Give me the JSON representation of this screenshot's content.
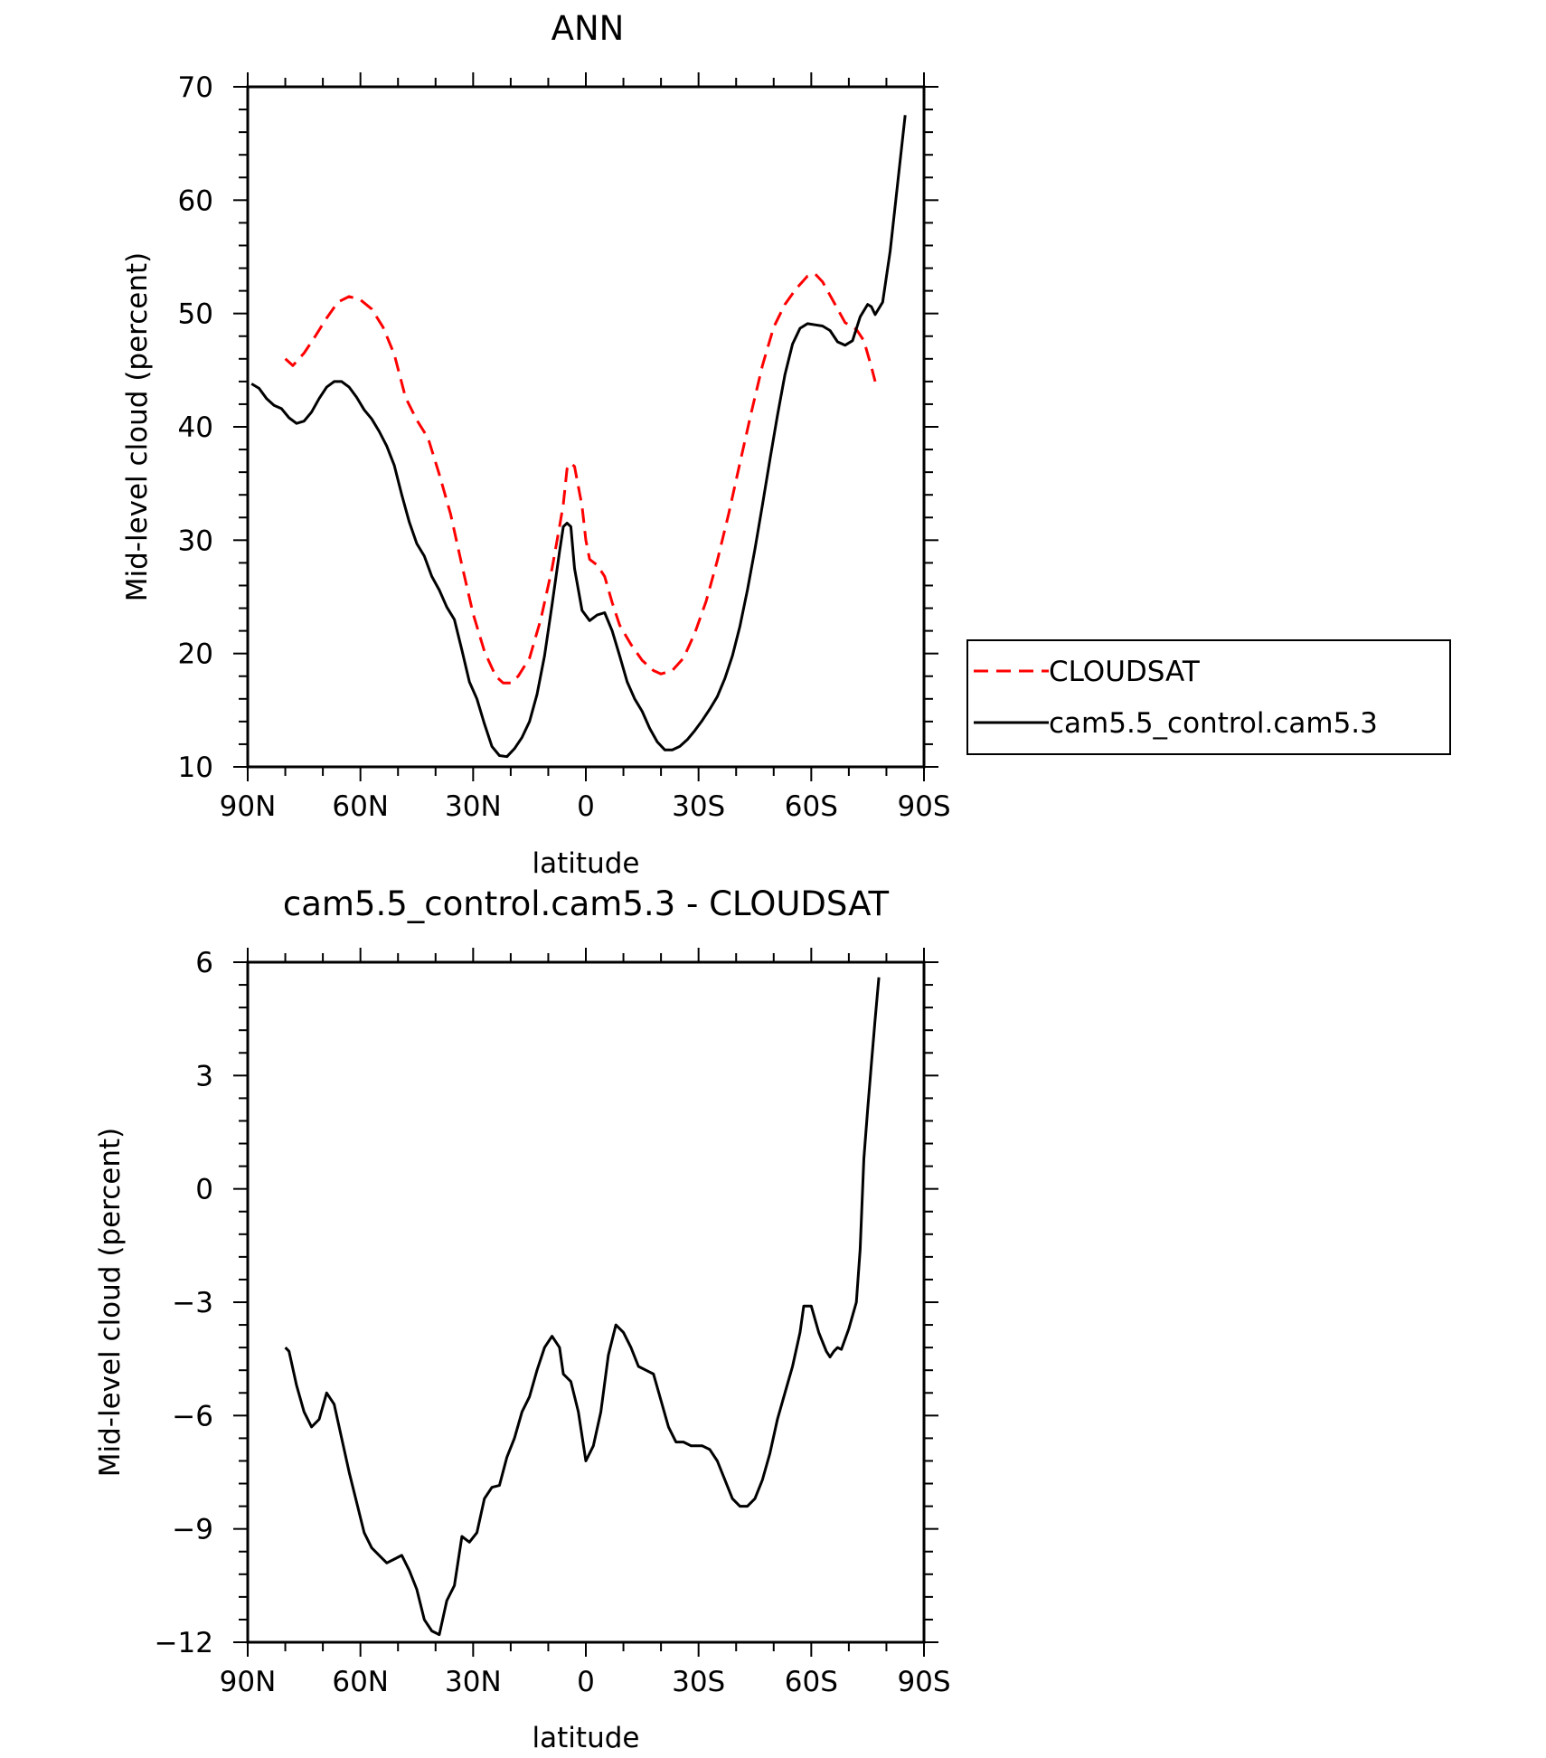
{
  "chart_data": [
    {
      "type": "line",
      "title": "ANN",
      "xlabel": "latitude",
      "ylabel": "Mid-level cloud (percent)",
      "xlim": [
        90,
        -90
      ],
      "ylim": [
        10,
        70
      ],
      "x_ticks": [
        {
          "value": 90,
          "label": "90N"
        },
        {
          "value": 60,
          "label": "60N"
        },
        {
          "value": 30,
          "label": "30N"
        },
        {
          "value": 0,
          "label": "0"
        },
        {
          "value": -30,
          "label": "30S"
        },
        {
          "value": -60,
          "label": "60S"
        },
        {
          "value": -90,
          "label": "90S"
        }
      ],
      "y_ticks": [
        {
          "value": 10,
          "label": "10"
        },
        {
          "value": 20,
          "label": "20"
        },
        {
          "value": 30,
          "label": "30"
        },
        {
          "value": 40,
          "label": "40"
        },
        {
          "value": 50,
          "label": "50"
        },
        {
          "value": 60,
          "label": "60"
        },
        {
          "value": 70,
          "label": "70"
        }
      ],
      "legend": "right",
      "series": [
        {
          "name": "CLOUDSAT",
          "color": "#ff0000",
          "dash": true,
          "points": [
            [
              80,
              46
            ],
            [
              78,
              45.4
            ],
            [
              75,
              46.5
            ],
            [
              72,
              48
            ],
            [
              69,
              49.6
            ],
            [
              66,
              51
            ],
            [
              63,
              51.5
            ],
            [
              60,
              51.2
            ],
            [
              57,
              50.4
            ],
            [
              54,
              48.8
            ],
            [
              51,
              46.4
            ],
            [
              48,
              42.6
            ],
            [
              45,
              40.6
            ],
            [
              42,
              39
            ],
            [
              39,
              35.8
            ],
            [
              36,
              32.3
            ],
            [
              33,
              27.8
            ],
            [
              30,
              23.5
            ],
            [
              27,
              20.2
            ],
            [
              24,
              18
            ],
            [
              22,
              17.4
            ],
            [
              20,
              17.4
            ],
            [
              18,
              18
            ],
            [
              15,
              19.6
            ],
            [
              12,
              23
            ],
            [
              9,
              27.5
            ],
            [
              7,
              31.2
            ],
            [
              6,
              33.2
            ],
            [
              5,
              36.3
            ],
            [
              4,
              36.8
            ],
            [
              3,
              36.5
            ],
            [
              1,
              33
            ],
            [
              0,
              30
            ],
            [
              -1,
              28.3
            ],
            [
              -3,
              27.8
            ],
            [
              -5,
              26.8
            ],
            [
              -7,
              24.5
            ],
            [
              -9,
              22.5
            ],
            [
              -12,
              20.8
            ],
            [
              -15,
              19.4
            ],
            [
              -18,
              18.5
            ],
            [
              -20,
              18.2
            ],
            [
              -23,
              18.5
            ],
            [
              -26,
              19.6
            ],
            [
              -29,
              21.8
            ],
            [
              -32,
              24.6
            ],
            [
              -35,
              28.2
            ],
            [
              -38,
              32.3
            ],
            [
              -41,
              36.8
            ],
            [
              -44,
              41.2
            ],
            [
              -47,
              45.4
            ],
            [
              -50,
              48.8
            ],
            [
              -53,
              50.8
            ],
            [
              -56,
              52.2
            ],
            [
              -59,
              53.3
            ],
            [
              -61,
              53.5
            ],
            [
              -63,
              52.8
            ],
            [
              -66,
              51
            ],
            [
              -69,
              49.2
            ],
            [
              -72,
              48.6
            ],
            [
              -74,
              47.6
            ],
            [
              -76,
              45.3
            ],
            [
              -77,
              44
            ]
          ]
        },
        {
          "name": "cam5.5_control.cam5.3",
          "color": "#000000",
          "dash": false,
          "points": [
            [
              89,
              43.8
            ],
            [
              87,
              43.4
            ],
            [
              85,
              42.5
            ],
            [
              83,
              41.9
            ],
            [
              81,
              41.6
            ],
            [
              79,
              40.8
            ],
            [
              77,
              40.3
            ],
            [
              75,
              40.5
            ],
            [
              73,
              41.3
            ],
            [
              71,
              42.5
            ],
            [
              69,
              43.5
            ],
            [
              67,
              44
            ],
            [
              65,
              44
            ],
            [
              63,
              43.5
            ],
            [
              61,
              42.6
            ],
            [
              59,
              41.5
            ],
            [
              57,
              40.7
            ],
            [
              55,
              39.6
            ],
            [
              53,
              38.3
            ],
            [
              51,
              36.6
            ],
            [
              49,
              34
            ],
            [
              47,
              31.6
            ],
            [
              45,
              29.7
            ],
            [
              43,
              28.6
            ],
            [
              41,
              26.8
            ],
            [
              39,
              25.6
            ],
            [
              37,
              24.1
            ],
            [
              35,
              23
            ],
            [
              33,
              20.3
            ],
            [
              31,
              17.5
            ],
            [
              29,
              16
            ],
            [
              27,
              13.8
            ],
            [
              25,
              11.8
            ],
            [
              23,
              11
            ],
            [
              21,
              10.9
            ],
            [
              19,
              11.6
            ],
            [
              17,
              12.6
            ],
            [
              15,
              14
            ],
            [
              13,
              16.4
            ],
            [
              11,
              19.8
            ],
            [
              9,
              24.3
            ],
            [
              7,
              29
            ],
            [
              6,
              31.2
            ],
            [
              5,
              31.5
            ],
            [
              4,
              31.2
            ],
            [
              3,
              27.5
            ],
            [
              1,
              23.8
            ],
            [
              -1,
              22.9
            ],
            [
              -3,
              23.4
            ],
            [
              -5,
              23.6
            ],
            [
              -7,
              22
            ],
            [
              -9,
              19.8
            ],
            [
              -11,
              17.5
            ],
            [
              -13,
              16
            ],
            [
              -15,
              14.9
            ],
            [
              -17,
              13.4
            ],
            [
              -19,
              12.2
            ],
            [
              -21,
              11.5
            ],
            [
              -23,
              11.5
            ],
            [
              -25,
              11.8
            ],
            [
              -27,
              12.4
            ],
            [
              -29,
              13.2
            ],
            [
              -31,
              14.1
            ],
            [
              -33,
              15.1
            ],
            [
              -35,
              16.2
            ],
            [
              -37,
              17.8
            ],
            [
              -39,
              19.8
            ],
            [
              -41,
              22.4
            ],
            [
              -43,
              25.6
            ],
            [
              -45,
              29.2
            ],
            [
              -47,
              33.1
            ],
            [
              -49,
              37.1
            ],
            [
              -51,
              41
            ],
            [
              -53,
              44.6
            ],
            [
              -55,
              47.3
            ],
            [
              -57,
              48.7
            ],
            [
              -59,
              49.1
            ],
            [
              -61,
              49
            ],
            [
              -63,
              48.9
            ],
            [
              -65,
              48.5
            ],
            [
              -67,
              47.5
            ],
            [
              -69,
              47.2
            ],
            [
              -71,
              47.6
            ],
            [
              -73,
              49.7
            ],
            [
              -75,
              50.8
            ],
            [
              -76,
              50.6
            ],
            [
              -77,
              49.9
            ],
            [
              -79,
              51
            ],
            [
              -81,
              55.5
            ],
            [
              -83,
              61.5
            ],
            [
              -85,
              67.5
            ]
          ]
        }
      ]
    },
    {
      "type": "line",
      "title": "cam5.5_control.cam5.3 - CLOUDSAT",
      "xlabel": "latitude",
      "ylabel": "Mid-level cloud (percent)",
      "xlim": [
        90,
        -90
      ],
      "ylim": [
        -12,
        6
      ],
      "x_ticks": [
        {
          "value": 90,
          "label": "90N"
        },
        {
          "value": 60,
          "label": "60N"
        },
        {
          "value": 30,
          "label": "30N"
        },
        {
          "value": 0,
          "label": "0"
        },
        {
          "value": -30,
          "label": "30S"
        },
        {
          "value": -60,
          "label": "60S"
        },
        {
          "value": -90,
          "label": "90S"
        }
      ],
      "y_ticks": [
        {
          "value": -12,
          "label": "−12"
        },
        {
          "value": -9,
          "label": "−9"
        },
        {
          "value": -6,
          "label": "−6"
        },
        {
          "value": -3,
          "label": "−3"
        },
        {
          "value": 0,
          "label": "0"
        },
        {
          "value": 3,
          "label": "3"
        },
        {
          "value": 6,
          "label": "6"
        }
      ],
      "series": [
        {
          "color": "#000000",
          "dash": false,
          "points": [
            [
              80,
              -4.2
            ],
            [
              79,
              -4.3
            ],
            [
              77,
              -5.2
            ],
            [
              75,
              -5.9
            ],
            [
              73,
              -6.3
            ],
            [
              71,
              -6.1
            ],
            [
              69,
              -5.4
            ],
            [
              67,
              -5.7
            ],
            [
              65,
              -6.6
            ],
            [
              63,
              -7.5
            ],
            [
              61,
              -8.3
            ],
            [
              59,
              -9.1
            ],
            [
              57,
              -9.5
            ],
            [
              55,
              -9.7
            ],
            [
              53,
              -9.9
            ],
            [
              51,
              -9.8
            ],
            [
              49,
              -9.7
            ],
            [
              47,
              -10.1
            ],
            [
              45,
              -10.6
            ],
            [
              43,
              -11.4
            ],
            [
              41,
              -11.7
            ],
            [
              39,
              -11.8
            ],
            [
              37,
              -10.9
            ],
            [
              35,
              -10.5
            ],
            [
              33,
              -9.2
            ],
            [
              31,
              -9.35
            ],
            [
              29,
              -9.1
            ],
            [
              27,
              -8.2
            ],
            [
              25,
              -7.9
            ],
            [
              23,
              -7.85
            ],
            [
              21,
              -7.1
            ],
            [
              19,
              -6.6
            ],
            [
              17,
              -5.9
            ],
            [
              15,
              -5.5
            ],
            [
              13,
              -4.8
            ],
            [
              11,
              -4.2
            ],
            [
              9,
              -3.9
            ],
            [
              7,
              -4.2
            ],
            [
              6,
              -4.9
            ],
            [
              4,
              -5.1
            ],
            [
              2,
              -5.9
            ],
            [
              0,
              -7.2
            ],
            [
              -2,
              -6.8
            ],
            [
              -4,
              -5.9
            ],
            [
              -6,
              -4.4
            ],
            [
              -8,
              -3.6
            ],
            [
              -10,
              -3.8
            ],
            [
              -12,
              -4.2
            ],
            [
              -14,
              -4.7
            ],
            [
              -16,
              -4.8
            ],
            [
              -18,
              -4.9
            ],
            [
              -20,
              -5.6
            ],
            [
              -22,
              -6.3
            ],
            [
              -24,
              -6.7
            ],
            [
              -26,
              -6.7
            ],
            [
              -28,
              -6.8
            ],
            [
              -31,
              -6.8
            ],
            [
              -33,
              -6.9
            ],
            [
              -35,
              -7.2
            ],
            [
              -37,
              -7.7
            ],
            [
              -39,
              -8.2
            ],
            [
              -41,
              -8.4
            ],
            [
              -43,
              -8.4
            ],
            [
              -45,
              -8.2
            ],
            [
              -47,
              -7.7
            ],
            [
              -49,
              -7
            ],
            [
              -51,
              -6.1
            ],
            [
              -53,
              -5.4
            ],
            [
              -55,
              -4.7
            ],
            [
              -57,
              -3.8
            ],
            [
              -58,
              -3.1
            ],
            [
              -60,
              -3.1
            ],
            [
              -62,
              -3.8
            ],
            [
              -64,
              -4.3
            ],
            [
              -65,
              -4.45
            ],
            [
              -66,
              -4.3
            ],
            [
              -67,
              -4.2
            ],
            [
              -68,
              -4.25
            ],
            [
              -70,
              -3.7
            ],
            [
              -72,
              -3
            ],
            [
              -73,
              -1.6
            ],
            [
              -74,
              0.8
            ],
            [
              -75,
              2.1
            ],
            [
              -76,
              3.3
            ],
            [
              -77,
              4.5
            ],
            [
              -78,
              5.6
            ]
          ]
        }
      ]
    }
  ]
}
